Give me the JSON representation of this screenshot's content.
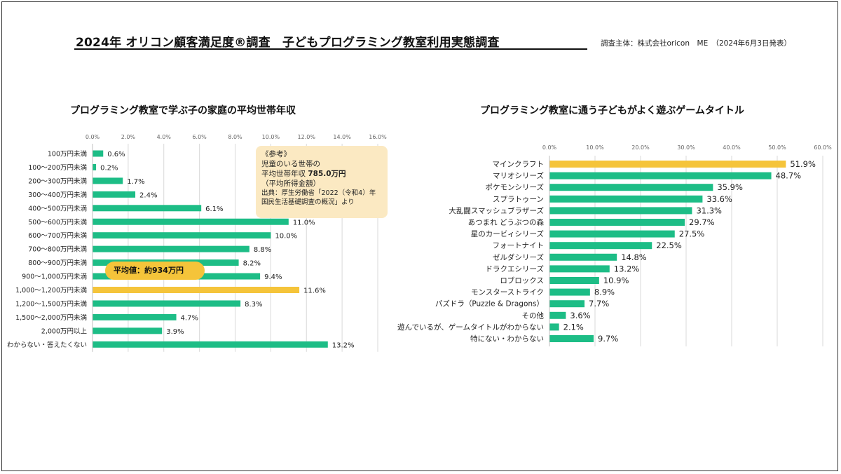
{
  "header": {
    "title": "2024年 オリコン顧客満足度®調査　子どもプログラミング教室利用実態調査",
    "organizer": "調査主体：株式会社oricon　ME　（2024年6月3日発表）"
  },
  "reference_box": {
    "heading": "《参考》",
    "line1": "児童のいる世帯の",
    "line2_label": "平均世帯年収",
    "line2_value": "785.0万円",
    "line3": "（平均所得金額）",
    "source1": "出典：厚生労働省「2022（令和4）年",
    "source2": "国民生活基礎調査の概況」より"
  },
  "average_bubble": {
    "label": "平均値：約934万円"
  },
  "colors": {
    "bar": "#1dbd86",
    "highlight": "#f5c43a",
    "grid": "#d9d9d9",
    "ref_bg": "#fbe9c2"
  },
  "chart_data": [
    {
      "type": "bar",
      "orientation": "horizontal",
      "title": "プログラミング教室で学ぶ子の家庭の平均世帯年収",
      "xlim": [
        0,
        16
      ],
      "ticks": [
        "0.0%",
        "2.0%",
        "4.0%",
        "6.0%",
        "8.0%",
        "10.0%",
        "12.0%",
        "14.0%",
        "16.0%"
      ],
      "categories": [
        "100万円未満",
        "100～200万円未満",
        "200～300万円未満",
        "300～400万円未満",
        "400～500万円未満",
        "500～600万円未満",
        "600～700万円未満",
        "700～800万円未満",
        "800～900万円未満",
        "900～1,000万円未満",
        "1,000～1,200万円未満",
        "1,200～1,500万円未満",
        "1,500～2,000万円未満",
        "2,000万円以上",
        "わからない・答えたくない"
      ],
      "values": [
        0.6,
        0.2,
        1.7,
        2.4,
        6.1,
        11.0,
        10.0,
        8.8,
        8.2,
        9.4,
        11.6,
        8.3,
        4.7,
        3.9,
        13.2
      ],
      "labels": [
        "0.6%",
        "0.2%",
        "1.7%",
        "2.4%",
        "6.1%",
        "11.0%",
        "10.0%",
        "8.8%",
        "8.2%",
        "9.4%",
        "11.6%",
        "8.3%",
        "4.7%",
        "3.9%",
        "13.2%"
      ],
      "highlight_index": 10
    },
    {
      "type": "bar",
      "orientation": "horizontal",
      "title": "プログラミング教室に通う子どもがよく遊ぶゲームタイトル",
      "xlim": [
        0,
        60
      ],
      "ticks": [
        "0.0%",
        "10.0%",
        "20.0%",
        "30.0%",
        "40.0%",
        "50.0%",
        "60.0%"
      ],
      "categories": [
        "マインクラフト",
        "マリオシリーズ",
        "ポケモンシリーズ",
        "スプラトゥーン",
        "大乱闘スマッシュブラザーズ",
        "あつまれ どうぶつの森",
        "星のカービィシリーズ",
        "フォートナイト",
        "ゼルダシリーズ",
        "ドラクエシリーズ",
        "ロブロックス",
        "モンスターストライク",
        "パズドラ（Puzzle & Dragons）",
        "その他",
        "遊んでいるが、ゲームタイトルがわからない",
        "特にない・わからない"
      ],
      "values": [
        51.9,
        48.7,
        35.9,
        33.6,
        31.3,
        29.7,
        27.5,
        22.5,
        14.8,
        13.2,
        10.9,
        8.9,
        7.7,
        3.6,
        2.1,
        9.7
      ],
      "labels": [
        "51.9%",
        "48.7%",
        "35.9%",
        "33.6%",
        "31.3%",
        "29.7%",
        "27.5%",
        "22.5%",
        "14.8%",
        "13.2%",
        "10.9%",
        "8.9%",
        "7.7%",
        "3.6%",
        "2.1%",
        "9.7%"
      ],
      "highlight_index": 0
    }
  ]
}
